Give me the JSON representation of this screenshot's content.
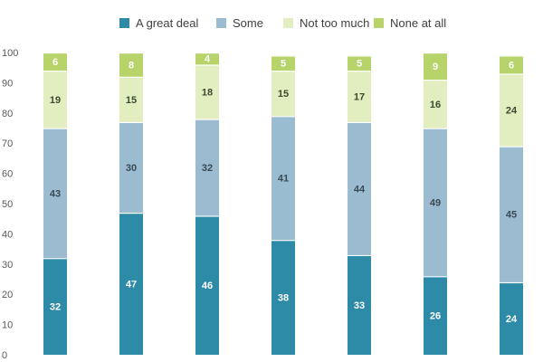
{
  "chart_data": {
    "type": "bar",
    "stacked": true,
    "categories": [
      "",
      "",
      "",
      "",
      "",
      "",
      ""
    ],
    "ylim": [
      0,
      100
    ],
    "yticks": [
      0,
      10,
      20,
      30,
      40,
      50,
      60,
      70,
      80,
      90,
      100
    ],
    "legend_position": "top",
    "grid": false,
    "series": [
      {
        "name": "A great deal",
        "color": "#2e8ba8",
        "label_color": "#ffffff",
        "values": [
          32,
          47,
          46,
          38,
          33,
          26,
          24
        ]
      },
      {
        "name": "Some",
        "color": "#9bbcd0",
        "label_color": "#3a4a55",
        "values": [
          43,
          30,
          32,
          41,
          44,
          49,
          45
        ]
      },
      {
        "name": "Not too much",
        "color": "#e3eec0",
        "label_color": "#3a4a30",
        "values": [
          19,
          15,
          18,
          15,
          17,
          16,
          24
        ]
      },
      {
        "name": "None at all",
        "color": "#b6d46a",
        "label_color": "#ffffff",
        "values": [
          6,
          8,
          4,
          5,
          5,
          9,
          6
        ]
      }
    ]
  }
}
